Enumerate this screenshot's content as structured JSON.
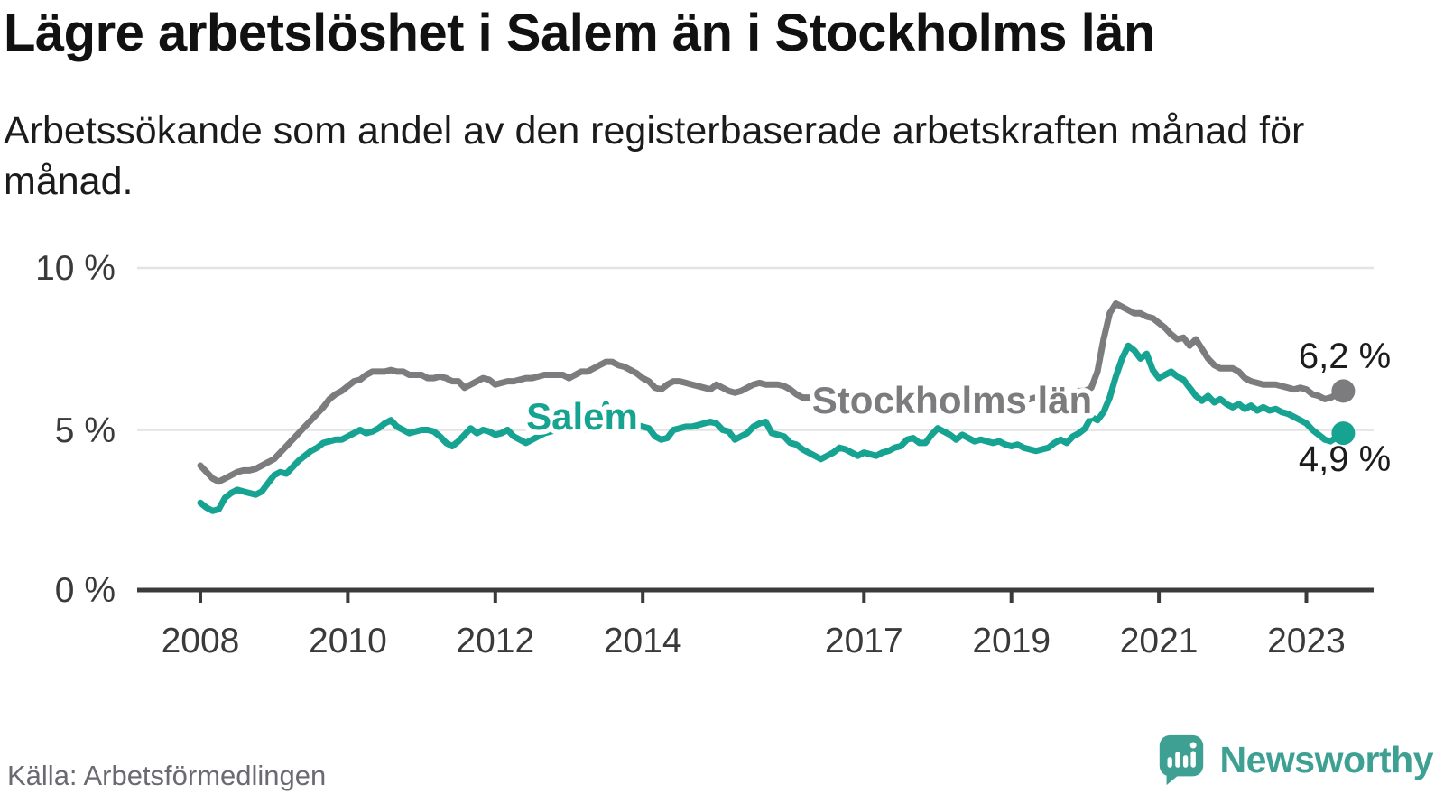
{
  "header": {
    "title": "Lägre arbetslöshet i Salem än i Stockholms län",
    "subtitle": "Arbetssökande som andel av den registerbaserade arbetskraften månad för månad."
  },
  "footer": {
    "source": "Källa: Arbetsförmedlingen",
    "brand_name": "Newsworthy",
    "brand_color": "#3da092",
    "logo_icon": "speech-bubble-bar-chart-icon"
  },
  "chart_data": {
    "type": "line",
    "unit": "%",
    "frequency": "monthly",
    "start": "2008-01",
    "end": "2023-07",
    "grid": "horizontal",
    "legend_position": "inline-labels",
    "ylim": [
      0,
      10.5
    ],
    "y_axis": {
      "ticks": [
        {
          "value": 10,
          "label": "10 %"
        },
        {
          "value": 5,
          "label": "5 %"
        },
        {
          "value": 0,
          "label": "0 %"
        }
      ]
    },
    "x_axis": {
      "ticks": [
        {
          "year": 2008,
          "label": "2008"
        },
        {
          "year": 2010,
          "label": "2010"
        },
        {
          "year": 2012,
          "label": "2012"
        },
        {
          "year": 2014,
          "label": "2014"
        },
        {
          "year": 2017,
          "label": "2017"
        },
        {
          "year": 2019,
          "label": "2019"
        },
        {
          "year": 2021,
          "label": "2021"
        },
        {
          "year": 2023,
          "label": "2023"
        }
      ]
    },
    "series": [
      {
        "name": "Stockholms län",
        "color": "#7c7c7e",
        "end_label": "6,2 %",
        "end_value": 6.2,
        "values": [
          3.9,
          3.7,
          3.5,
          3.4,
          3.5,
          3.6,
          3.7,
          3.75,
          3.75,
          3.8,
          3.9,
          4.0,
          4.1,
          4.3,
          4.5,
          4.7,
          4.9,
          5.1,
          5.3,
          5.5,
          5.7,
          5.95,
          6.1,
          6.2,
          6.35,
          6.5,
          6.55,
          6.7,
          6.8,
          6.8,
          6.8,
          6.85,
          6.8,
          6.8,
          6.7,
          6.7,
          6.7,
          6.6,
          6.6,
          6.65,
          6.6,
          6.5,
          6.5,
          6.3,
          6.4,
          6.5,
          6.6,
          6.55,
          6.4,
          6.45,
          6.5,
          6.5,
          6.55,
          6.6,
          6.6,
          6.65,
          6.7,
          6.7,
          6.7,
          6.7,
          6.6,
          6.7,
          6.8,
          6.8,
          6.9,
          7.0,
          7.1,
          7.1,
          7.0,
          6.95,
          6.85,
          6.75,
          6.6,
          6.5,
          6.3,
          6.25,
          6.4,
          6.5,
          6.5,
          6.45,
          6.4,
          6.35,
          6.3,
          6.25,
          6.4,
          6.3,
          6.2,
          6.15,
          6.2,
          6.3,
          6.4,
          6.45,
          6.4,
          6.4,
          6.4,
          6.35,
          6.25,
          6.1,
          6.0,
          6.0,
          6.05,
          6.0,
          6.0,
          5.95,
          6.0,
          6.0,
          6.0,
          6.0,
          6.0,
          6.0,
          6.05,
          6.0,
          6.0,
          6.05,
          6.1,
          6.0,
          6.05,
          6.1,
          6.0,
          6.0,
          6.0,
          5.95,
          5.9,
          5.9,
          5.95,
          6.0,
          5.95,
          5.9,
          5.9,
          5.9,
          5.95,
          6.0,
          5.95,
          5.9,
          5.9,
          5.95,
          6.0,
          6.0,
          6.05,
          6.1,
          6.1,
          6.1,
          6.15,
          6.2,
          6.2,
          6.3,
          6.8,
          7.8,
          8.6,
          8.9,
          8.8,
          8.7,
          8.6,
          8.6,
          8.5,
          8.45,
          8.3,
          8.15,
          7.95,
          7.8,
          7.85,
          7.6,
          7.8,
          7.5,
          7.2,
          7.0,
          6.9,
          6.9,
          6.9,
          6.8,
          6.6,
          6.5,
          6.45,
          6.4,
          6.4,
          6.4,
          6.35,
          6.3,
          6.25,
          6.3,
          6.25,
          6.1,
          6.05,
          5.95,
          6.0,
          6.1,
          6.2
        ]
      },
      {
        "name": "Salem",
        "color": "#16a391",
        "end_label": "4,9 %",
        "end_value": 4.9,
        "values": [
          2.75,
          2.6,
          2.5,
          2.55,
          2.9,
          3.05,
          3.15,
          3.1,
          3.05,
          3.0,
          3.1,
          3.35,
          3.6,
          3.7,
          3.65,
          3.85,
          4.05,
          4.2,
          4.35,
          4.45,
          4.6,
          4.65,
          4.7,
          4.7,
          4.8,
          4.9,
          5.0,
          4.9,
          4.95,
          5.05,
          5.2,
          5.3,
          5.1,
          5.0,
          4.9,
          4.95,
          5.0,
          5.0,
          4.95,
          4.8,
          4.6,
          4.5,
          4.65,
          4.85,
          5.05,
          4.9,
          5.0,
          4.95,
          4.85,
          4.9,
          5.0,
          4.8,
          4.7,
          4.6,
          4.7,
          4.8,
          4.9,
          4.95,
          5.0,
          5.0,
          5.0,
          5.05,
          5.1,
          5.0,
          4.95,
          5.15,
          5.8,
          5.2,
          5.05,
          5.0,
          5.05,
          5.15,
          5.1,
          5.05,
          4.8,
          4.7,
          4.75,
          5.0,
          5.05,
          5.1,
          5.1,
          5.15,
          5.2,
          5.25,
          5.2,
          5.0,
          4.95,
          4.7,
          4.8,
          4.9,
          5.1,
          5.2,
          5.25,
          4.9,
          4.85,
          4.8,
          4.6,
          4.55,
          4.4,
          4.3,
          4.2,
          4.1,
          4.2,
          4.3,
          4.45,
          4.4,
          4.3,
          4.2,
          4.3,
          4.25,
          4.2,
          4.3,
          4.35,
          4.45,
          4.5,
          4.7,
          4.75,
          4.6,
          4.6,
          4.85,
          5.05,
          4.95,
          4.85,
          4.7,
          4.85,
          4.75,
          4.65,
          4.7,
          4.65,
          4.6,
          4.65,
          4.55,
          4.5,
          4.55,
          4.45,
          4.4,
          4.35,
          4.4,
          4.45,
          4.6,
          4.7,
          4.6,
          4.8,
          4.9,
          5.05,
          5.4,
          5.3,
          5.55,
          6.0,
          6.65,
          7.2,
          7.6,
          7.45,
          7.2,
          7.35,
          6.85,
          6.6,
          6.7,
          6.8,
          6.65,
          6.55,
          6.3,
          6.05,
          5.9,
          6.05,
          5.85,
          5.95,
          5.8,
          5.7,
          5.8,
          5.65,
          5.75,
          5.6,
          5.7,
          5.6,
          5.65,
          5.55,
          5.5,
          5.4,
          5.3,
          5.2,
          5.0,
          4.85,
          4.7,
          4.65,
          4.8,
          4.9
        ]
      }
    ]
  }
}
